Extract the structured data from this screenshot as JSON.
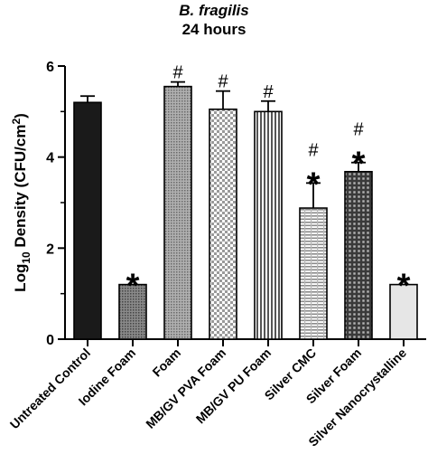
{
  "chart_data": {
    "type": "bar",
    "title": "B. fragilis",
    "subtitle": "24 hours",
    "ylabel_prefix": "Log",
    "ylabel_sub": "10",
    "ylabel_main": " Density (CFU/cm",
    "ylabel_sup": "2",
    "ylabel_suffix": ")",
    "ylim": [
      0,
      6
    ],
    "yticks": [
      "0",
      "2",
      "4",
      "6"
    ],
    "grid": false,
    "categories": [
      "Untreated Control",
      "Iodine Foam",
      "Foam",
      "MB/GV PVA Foam",
      "MB/GV PU Foam",
      "Silver CMC",
      "Silver Foam",
      "Silver Nanocrystalline"
    ],
    "values": [
      5.2,
      1.2,
      5.55,
      5.05,
      5.0,
      2.88,
      3.68,
      1.2
    ],
    "errors": [
      0.14,
      0,
      0.1,
      0.4,
      0.23,
      0.55,
      0.2,
      0
    ],
    "hash_marks": [
      "",
      "",
      "#",
      "#",
      "#",
      "#",
      "#",
      ""
    ],
    "star_marks": [
      "",
      "*",
      "",
      "",
      "",
      "*",
      "*",
      "*"
    ],
    "fill_patterns": [
      "solid-black",
      "dotted-dark",
      "dotted-medium",
      "checker-fine",
      "vertical-stripes",
      "horizontal-lines",
      "grid-dark",
      "solid-light-gray"
    ],
    "colors": {
      "bar_stroke": "#000000",
      "black_fill": "#1a1a1a",
      "light_fill": "#e6e6e6"
    }
  }
}
